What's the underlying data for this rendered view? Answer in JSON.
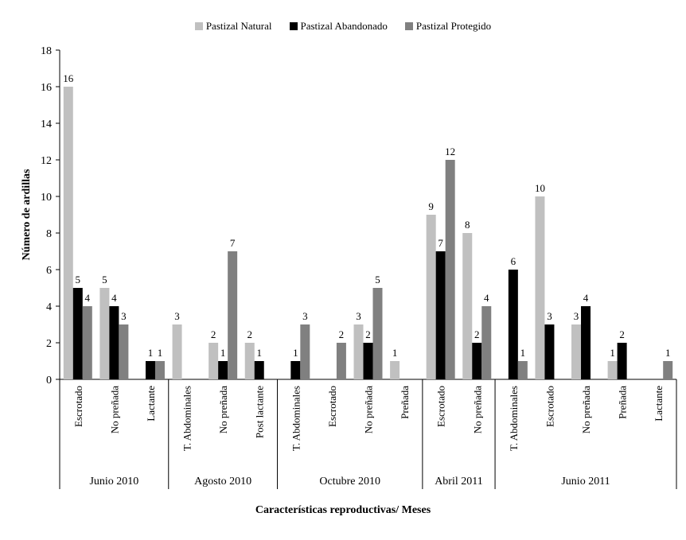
{
  "chart_data": {
    "type": "bar",
    "title": "",
    "xlabel": "Características reproductivas/ Meses",
    "ylabel": "Número de ardillas",
    "ylim": [
      0,
      18
    ],
    "yticks": [
      0,
      2,
      4,
      6,
      8,
      10,
      12,
      14,
      16,
      18
    ],
    "grid": false,
    "legend_position": "top-center",
    "groups": [
      {
        "label": "Junio 2010",
        "categories": [
          "Escrotado",
          "No preñada",
          "Lactante"
        ]
      },
      {
        "label": "Agosto 2010",
        "categories": [
          "T. Abdominales",
          "No preñada",
          "Post lactante"
        ]
      },
      {
        "label": "Octubre 2010",
        "categories": [
          "T. Abdominales",
          "Escrotado",
          "No preñada",
          "Preñada"
        ]
      },
      {
        "label": "Abril 2011",
        "categories": [
          "Escrotado",
          "No preñada"
        ]
      },
      {
        "label": "Junio 2011",
        "categories": [
          "T. Abdominales",
          "Escrotado",
          "No preñada",
          "Preñada",
          "Lactante"
        ]
      }
    ],
    "series": [
      {
        "name": "Pastizal Natural",
        "color": "#c0c0c0",
        "values": [
          16,
          5,
          null,
          3,
          2,
          2,
          null,
          null,
          3,
          1,
          9,
          8,
          null,
          10,
          3,
          1,
          null
        ]
      },
      {
        "name": "Pastizal Abandonado",
        "color": "#000000",
        "values": [
          5,
          4,
          1,
          null,
          1,
          1,
          1,
          null,
          2,
          null,
          7,
          2,
          6,
          3,
          4,
          2,
          null
        ]
      },
      {
        "name": "Pastizal Protegido",
        "color": "#808080",
        "values": [
          4,
          3,
          1,
          null,
          7,
          null,
          3,
          2,
          5,
          null,
          12,
          4,
          1,
          null,
          null,
          null,
          1
        ]
      }
    ]
  }
}
